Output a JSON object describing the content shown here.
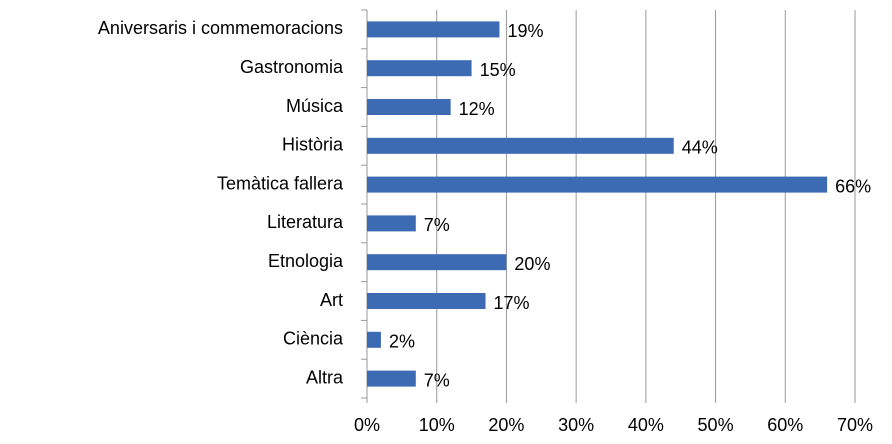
{
  "chart_data": {
    "type": "bar",
    "orientation": "horizontal",
    "categories": [
      "Aniversaris i commemoracions",
      "Gastronomia",
      "Música",
      "Història",
      "Temàtica fallera",
      "Literatura",
      "Etnologia",
      "Art",
      "Ciència",
      "Altra"
    ],
    "values": [
      19,
      15,
      12,
      44,
      66,
      7,
      20,
      17,
      2,
      7
    ],
    "value_labels": [
      "19%",
      "15%",
      "12%",
      "44%",
      "66%",
      "7%",
      "20%",
      "17%",
      "2%",
      "7%"
    ],
    "color": "#3d6bb3",
    "xlim": [
      0,
      70
    ],
    "xticks": [
      {
        "value": 0,
        "label": "0%"
      },
      {
        "value": 10,
        "label": "10%"
      },
      {
        "value": 20,
        "label": "20%"
      },
      {
        "value": 30,
        "label": "30%"
      },
      {
        "value": 40,
        "label": "40%"
      },
      {
        "value": 50,
        "label": "50%"
      },
      {
        "value": 60,
        "label": "60%"
      },
      {
        "value": 70,
        "label": "70%"
      }
    ],
    "grid": true
  }
}
